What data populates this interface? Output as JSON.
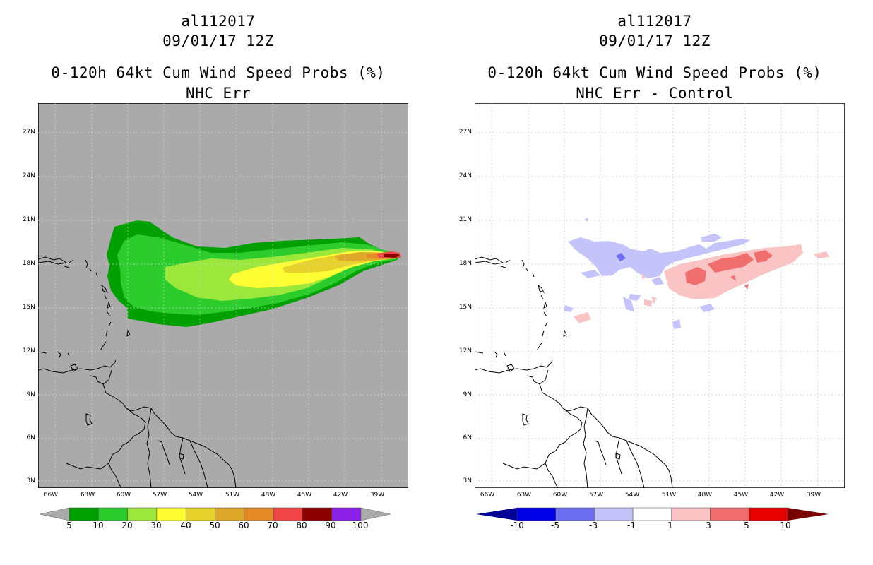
{
  "left": {
    "title_line1": "al112017",
    "title_line2": "09/01/17 12Z",
    "title_line3": "0-120h 64kt Cum Wind Speed Probs (%)",
    "title_line4": "NHC Err",
    "background_color": "#aaaaaa"
  },
  "right": {
    "title_line1": "al112017",
    "title_line2": "09/01/17 12Z",
    "title_line3": "0-120h 64kt Cum Wind Speed Probs (%)",
    "title_line4": "NHC Err - Control",
    "background_color": "#ffffff"
  },
  "lat_labels": [
    "27N",
    "24N",
    "21N",
    "18N",
    "15N",
    "12N",
    "9N",
    "6N",
    "3N"
  ],
  "lon_labels": [
    "66W",
    "63W",
    "60W",
    "57W",
    "54W",
    "51W",
    "48W",
    "45W",
    "42W",
    "39W"
  ],
  "left_legend": {
    "labels": [
      "5",
      "10",
      "20",
      "30",
      "40",
      "50",
      "60",
      "70",
      "80",
      "90",
      "100"
    ],
    "colors": [
      "#00a000",
      "#2ccc2c",
      "#9be83a",
      "#ffff33",
      "#e6d22a",
      "#e0a82a",
      "#e68a28",
      "#f04646",
      "#8c0000",
      "#8a20e6"
    ]
  },
  "right_legend": {
    "labels": [
      "-10",
      "-5",
      "-3",
      "-1",
      "1",
      "3",
      "5",
      "10"
    ],
    "colors": [
      "#0000e6",
      "#6e6ef0",
      "#c4c4fa",
      "#ffffff",
      "#fac4c4",
      "#f06e6e",
      "#e60000"
    ],
    "low_color": "#000096",
    "high_color": "#780000"
  },
  "chart_data": [
    {
      "type": "heatmap",
      "title": "0-120h 64kt Cum Wind Speed Probs (%)",
      "subtitle": "NHC Err",
      "storm": "al112017",
      "time": "09/01/17 12Z",
      "units": "%",
      "xrange": [
        -67,
        -36
      ],
      "yrange": [
        2.5,
        29
      ],
      "contour_levels": [
        5,
        10,
        20,
        30,
        40,
        50,
        60,
        70,
        80,
        90,
        100
      ],
      "maximum_area": {
        "lon": -37,
        "lat": 18.5,
        "value_range": [
          80,
          90
        ]
      }
    },
    {
      "type": "heatmap",
      "title": "0-120h 64kt Cum Wind Speed Probs (%)",
      "subtitle": "NHC Err - Control",
      "storm": "al112017",
      "time": "09/01/17 12Z",
      "units": "%",
      "xrange": [
        -67,
        -36
      ],
      "yrange": [
        2.5,
        29
      ],
      "contour_levels": [
        -10,
        -5,
        -3,
        -1,
        1,
        3,
        5,
        10
      ]
    }
  ]
}
